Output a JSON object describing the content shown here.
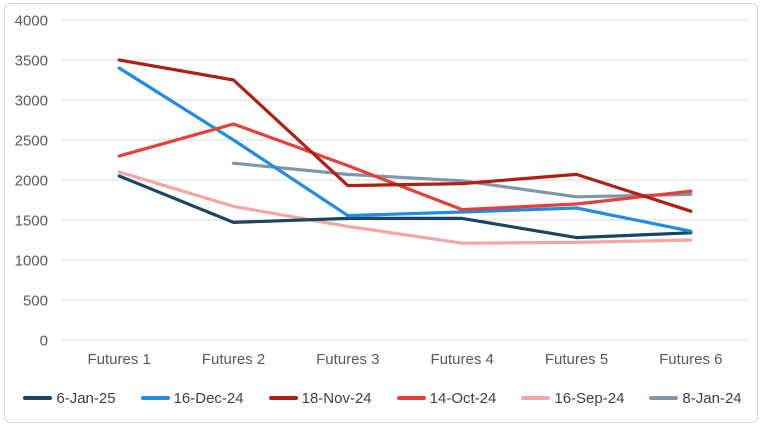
{
  "chart_data": {
    "type": "line",
    "title": "",
    "xlabel": "",
    "ylabel": "",
    "categories": [
      "Futures 1",
      "Futures 2",
      "Futures 3",
      "Futures 4",
      "Futures 5",
      "Futures 6"
    ],
    "series": [
      {
        "name": "6-Jan-25",
        "color": "#1b4560",
        "values": [
          2050,
          1470,
          1520,
          1520,
          1280,
          1340
        ]
      },
      {
        "name": "16-Dec-24",
        "color": "#1e8ce8",
        "values": [
          3400,
          2500,
          1555,
          1600,
          1650,
          1360
        ]
      },
      {
        "name": "18-Nov-24",
        "color": "#b01f14",
        "values": [
          3500,
          3250,
          1930,
          1955,
          2070,
          1610
        ]
      },
      {
        "name": "14-Oct-24",
        "color": "#e5403a",
        "values": [
          2300,
          2700,
          2180,
          1630,
          1700,
          1860
        ]
      },
      {
        "name": "16-Sep-24",
        "color": "#f3a6a4",
        "values": [
          2100,
          1670,
          1420,
          1210,
          1220,
          1250
        ]
      },
      {
        "name": "8-Jan-24",
        "color": "#7e98ab",
        "values": [
          null,
          2210,
          2070,
          1990,
          1790,
          1820
        ]
      }
    ],
    "plot_order": [
      "8-Jan-24",
      "16-Sep-24",
      "6-Jan-25",
      "16-Dec-24",
      "14-Oct-24",
      "18-Nov-24"
    ],
    "y_axis": {
      "min": 0,
      "max": 4000,
      "step": 500,
      "tick_labels": [
        "0",
        "500",
        "1000",
        "1500",
        "2000",
        "2500",
        "3000",
        "3500",
        "4000"
      ]
    },
    "grid": true,
    "legend_position": "bottom"
  },
  "style": {
    "grid_color": "#d9d9d9",
    "axis_text_color": "#595959",
    "legend_text_color": "#3f3f3f",
    "line_width": 3.2
  }
}
